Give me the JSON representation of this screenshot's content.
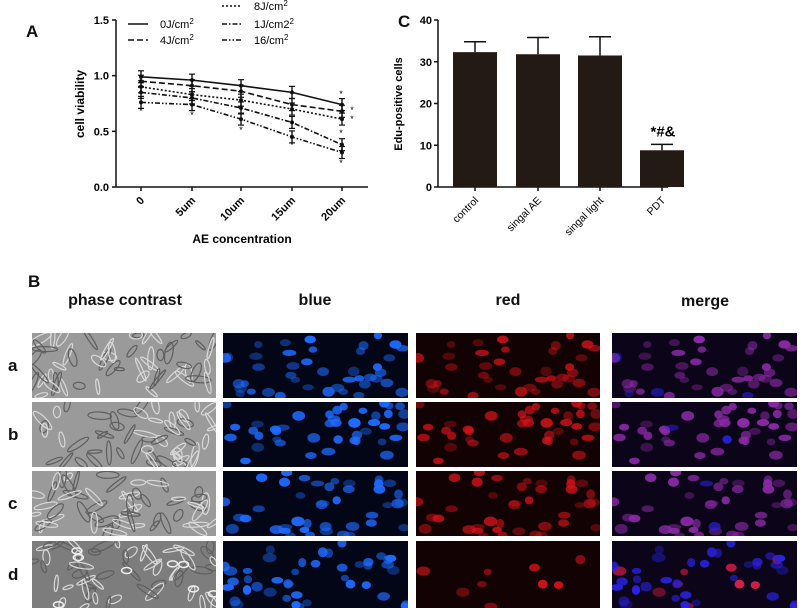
{
  "panels": {
    "A": {
      "letter": "A"
    },
    "B": {
      "letter": "B"
    },
    "C": {
      "letter": "C"
    }
  },
  "chart_data": [
    {
      "panel": "A",
      "type": "line",
      "title": "",
      "xlabel": "AE concentration",
      "ylabel": "cell viability",
      "x": [
        "0",
        "5um",
        "10um",
        "15um",
        "20um"
      ],
      "ylim": [
        0.0,
        1.5
      ],
      "yticks": [
        "0.0",
        "0.5",
        "1.0",
        "1.5"
      ],
      "grid": false,
      "legend_position": "top",
      "series": [
        {
          "name": "0J/cm2",
          "style": "solid",
          "values": [
            0.99,
            0.96,
            0.91,
            0.85,
            0.74
          ]
        },
        {
          "name": "4J/cm2",
          "style": "dashed",
          "values": [
            0.95,
            0.91,
            0.86,
            0.74,
            0.68
          ]
        },
        {
          "name": "8J/cm2",
          "style": "dotted-star",
          "values": [
            0.9,
            0.83,
            0.78,
            0.7,
            0.61
          ]
        },
        {
          "name": "12J/cm2",
          "style": "dash-dot",
          "values": [
            0.85,
            0.8,
            0.71,
            0.58,
            0.38
          ]
        },
        {
          "name": "16/cm2",
          "style": "dash-dot-dot",
          "values": [
            0.76,
            0.74,
            0.61,
            0.45,
            0.31
          ]
        }
      ],
      "annotations": [
        "* significance markers at most points"
      ]
    },
    {
      "panel": "C",
      "type": "bar",
      "title": "",
      "xlabel": "",
      "ylabel": "Edu-positive cells",
      "categories": [
        "control",
        "singal AE",
        "singal light",
        "PDT"
      ],
      "values": [
        32.3,
        31.8,
        31.5,
        8.8
      ],
      "errors": [
        2.5,
        4.0,
        4.5,
        1.4
      ],
      "ylim": [
        0,
        40
      ],
      "yticks": [
        "0",
        "10",
        "20",
        "30",
        "40"
      ],
      "annotations": [
        {
          "category": "PDT",
          "text": "*#&"
        }
      ],
      "bar_color": "#231a16"
    }
  ],
  "micrographs": {
    "columns": [
      "phase contrast",
      "blue",
      "red",
      "merge"
    ],
    "rows": [
      "a",
      "b",
      "c",
      "d"
    ]
  },
  "colors": {
    "phase_bg": "#8f8f8f",
    "blue_bg": "#020617",
    "red_bg": "#120203",
    "merge_bg": "#0c0418",
    "blue_nuc": "#1f6bff",
    "red_nuc": "#d4141a",
    "merge_nuc": "#8a2aa6"
  }
}
